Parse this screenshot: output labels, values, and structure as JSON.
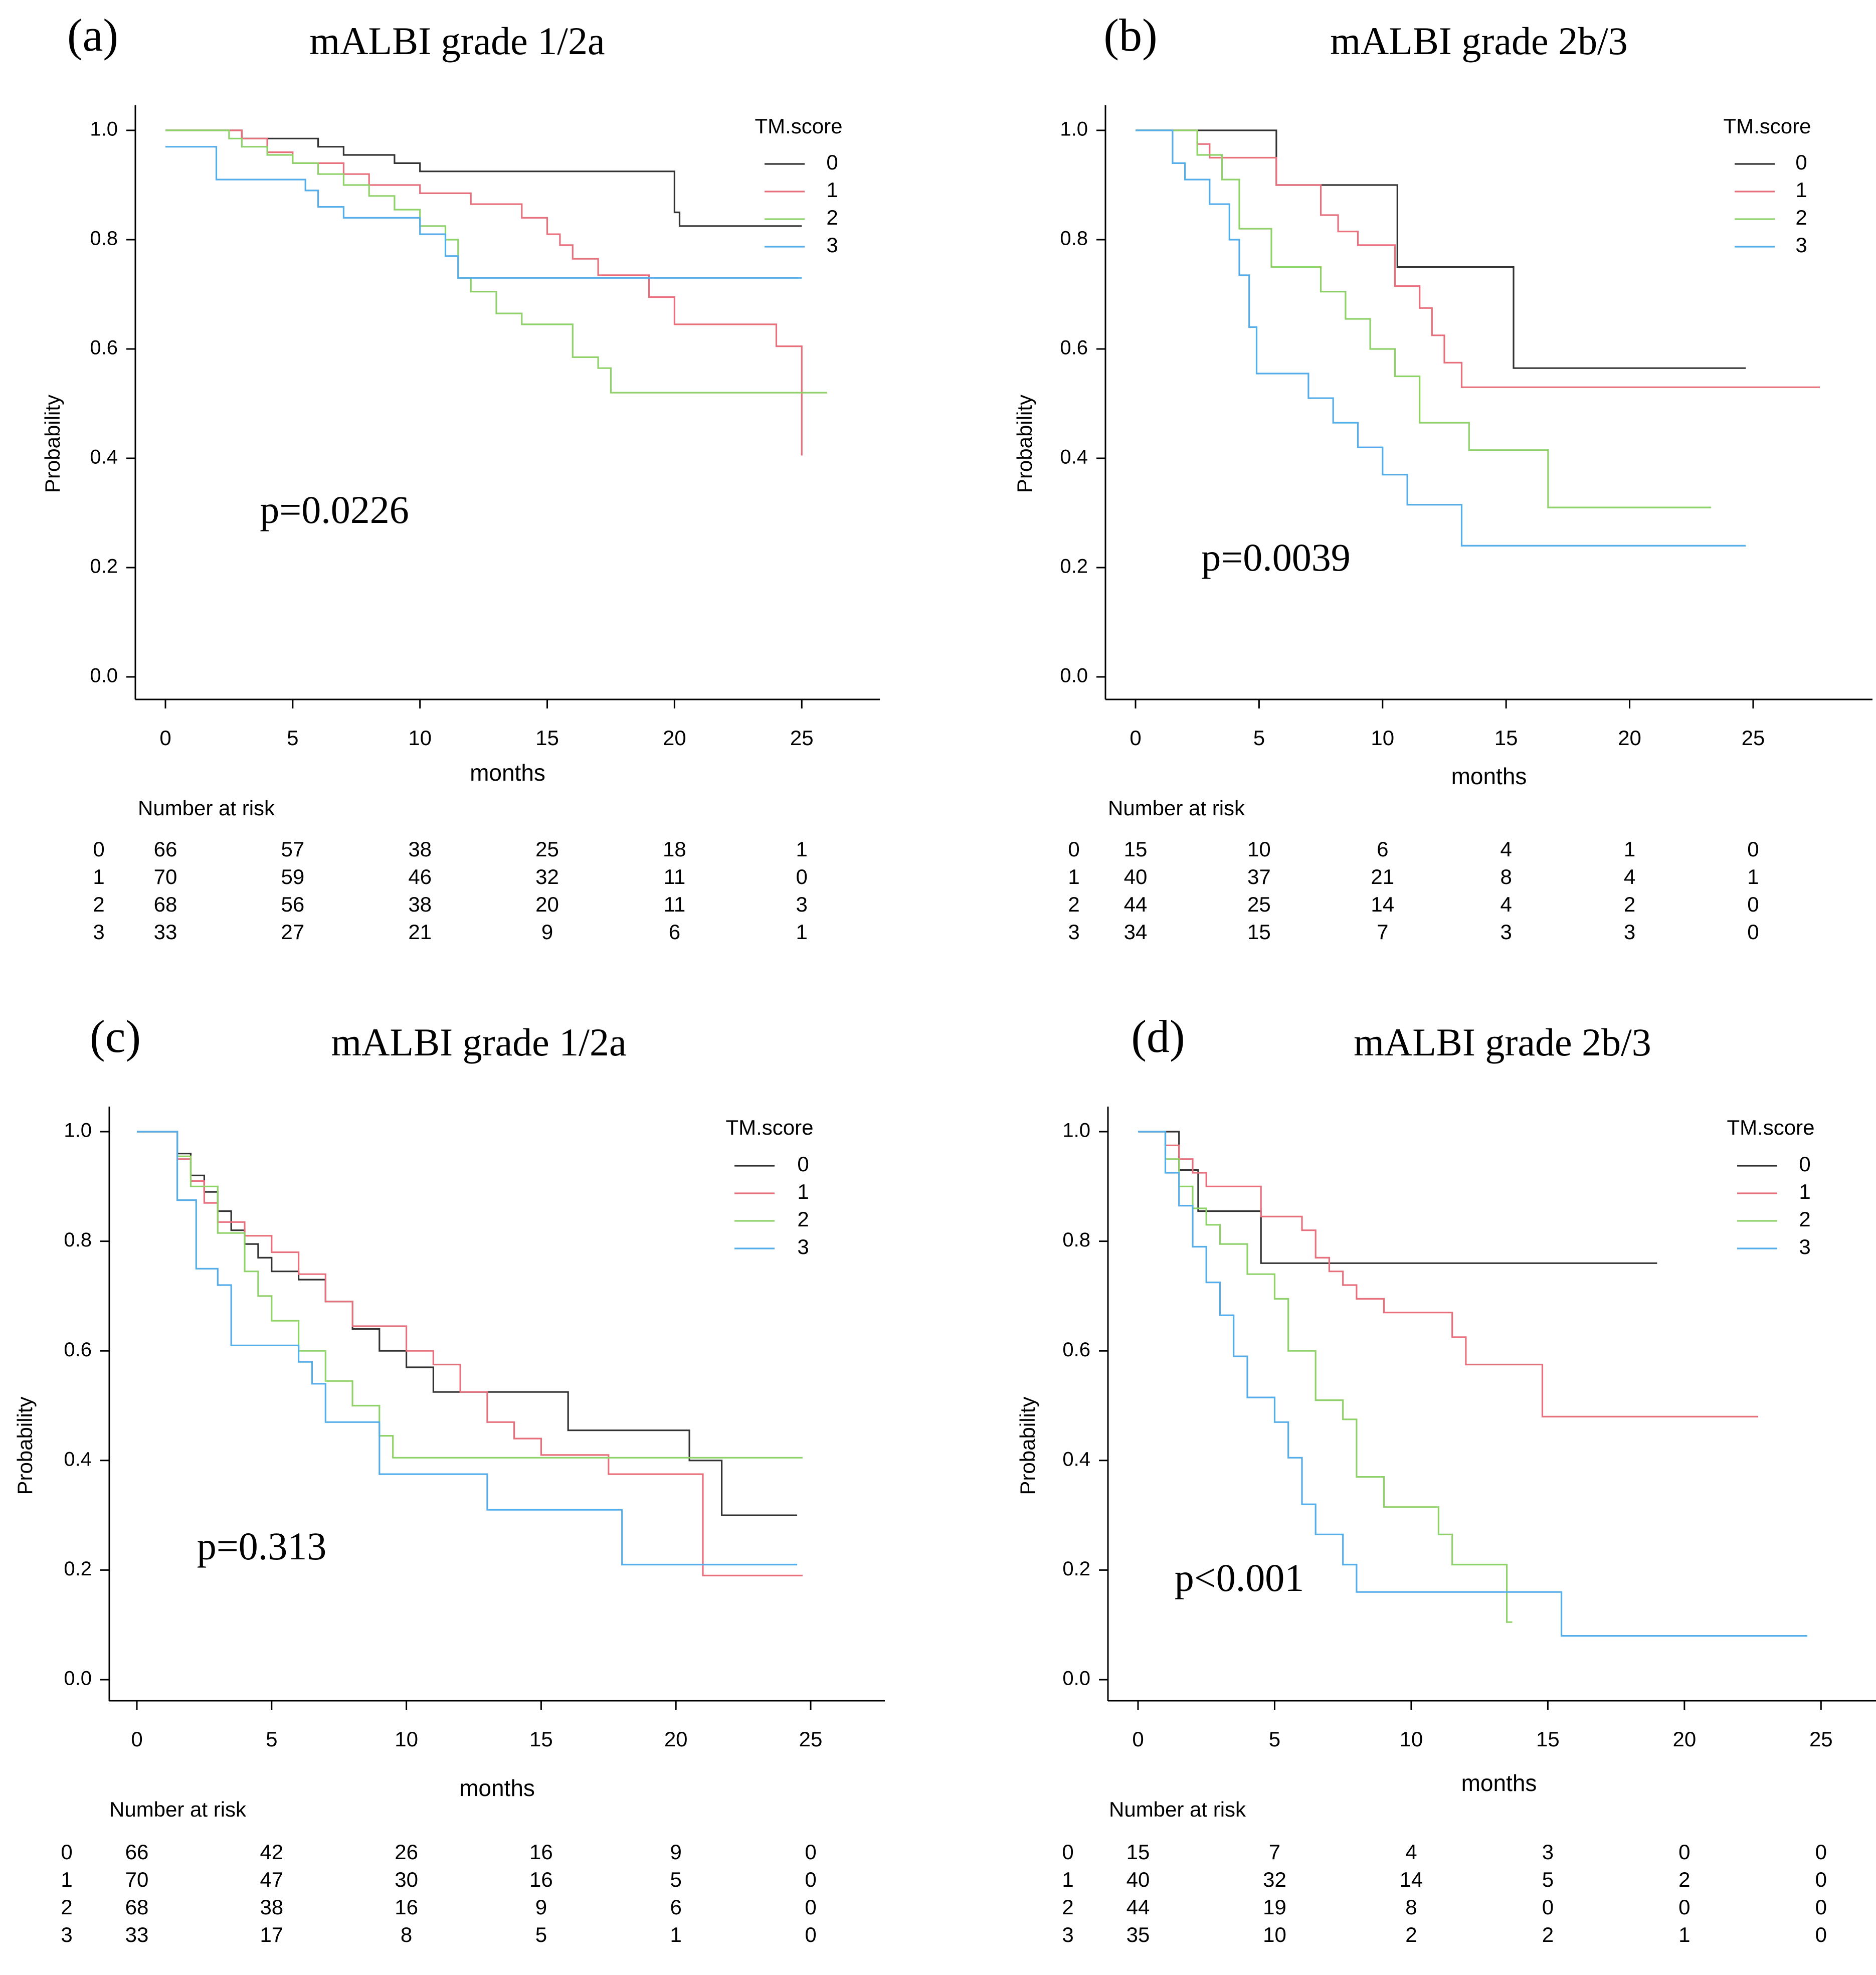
{
  "colors": {
    "0": "#333333",
    "1": "#e8707d",
    "2": "#8fd26a",
    "3": "#55aeea",
    "axis": "#000000"
  },
  "icon": "none",
  "chart_data": [
    {
      "type": "line",
      "panel_label": "(a)",
      "title": "mALBI grade 1/2a",
      "xlabel": "months",
      "ylabel": "Probability",
      "xlim": [
        0,
        26
      ],
      "ylim": [
        0,
        1
      ],
      "x_ticks": [
        "0",
        "5",
        "10",
        "15",
        "20",
        "25"
      ],
      "y_ticks": [
        "0.0",
        "0.2",
        "0.4",
        "0.6",
        "0.8",
        "1.0"
      ],
      "legend_title": "TM.score",
      "legend_position": "top-right",
      "pvalue": "p=0.0226",
      "series": [
        {
          "name": "0",
          "color_key": "0",
          "x": [
            0,
            3,
            6,
            7,
            9,
            10,
            20,
            20.2,
            25
          ],
          "y": [
            1.0,
            0.985,
            0.97,
            0.955,
            0.94,
            0.925,
            0.85,
            0.825,
            0.825
          ]
        },
        {
          "name": "1",
          "color_key": "1",
          "x": [
            0,
            3,
            4,
            5,
            7,
            8,
            10,
            12,
            14,
            15,
            15.5,
            16,
            17,
            18,
            19,
            20,
            24,
            25
          ],
          "y": [
            1.0,
            0.985,
            0.96,
            0.94,
            0.92,
            0.9,
            0.885,
            0.865,
            0.84,
            0.81,
            0.79,
            0.765,
            0.735,
            0.735,
            0.695,
            0.645,
            0.605,
            0.405
          ]
        },
        {
          "name": "2",
          "color_key": "2",
          "x": [
            0,
            2.5,
            3,
            4,
            5,
            6,
            7,
            8,
            9,
            10,
            11,
            11.5,
            12,
            13,
            14,
            16,
            17,
            17.5,
            26
          ],
          "y": [
            1.0,
            0.985,
            0.97,
            0.955,
            0.94,
            0.92,
            0.9,
            0.88,
            0.855,
            0.825,
            0.8,
            0.73,
            0.705,
            0.665,
            0.645,
            0.585,
            0.565,
            0.52,
            0.52
          ]
        },
        {
          "name": "3",
          "color_key": "3",
          "x": [
            0,
            1,
            2,
            5.5,
            6,
            7,
            10,
            11,
            11.5,
            25
          ],
          "y": [
            0.97,
            0.97,
            0.91,
            0.89,
            0.86,
            0.84,
            0.81,
            0.77,
            0.73,
            0.73
          ]
        }
      ],
      "risk_table": {
        "title": "Number at risk",
        "times": [
          "0",
          "5",
          "10",
          "15",
          "20",
          "25"
        ],
        "rows": [
          {
            "group": "0",
            "counts": [
              "66",
              "57",
              "38",
              "25",
              "18",
              "1"
            ]
          },
          {
            "group": "1",
            "counts": [
              "70",
              "59",
              "46",
              "32",
              "11",
              "0"
            ]
          },
          {
            "group": "2",
            "counts": [
              "68",
              "56",
              "38",
              "20",
              "11",
              "3"
            ]
          },
          {
            "group": "3",
            "counts": [
              "33",
              "27",
              "21",
              "9",
              "6",
              "1"
            ]
          }
        ]
      }
    },
    {
      "type": "line",
      "panel_label": "(b)",
      "title": "mALBI grade 2b/3",
      "xlabel": "months",
      "ylabel": "Probability",
      "xlim": [
        0,
        27.7
      ],
      "ylim": [
        0,
        1
      ],
      "x_ticks": [
        "0",
        "5",
        "10",
        "15",
        "20",
        "25"
      ],
      "y_ticks": [
        "0.0",
        "0.2",
        "0.4",
        "0.6",
        "0.8",
        "1.0"
      ],
      "legend_title": "TM.score",
      "legend_position": "top-right",
      "pvalue": "p=0.0039",
      "series": [
        {
          "name": "0",
          "color_key": "0",
          "x": [
            0,
            5.7,
            10.6,
            15.3,
            24.7
          ],
          "y": [
            1.0,
            0.9,
            0.75,
            0.565,
            0.565
          ]
        },
        {
          "name": "1",
          "color_key": "1",
          "x": [
            0,
            2.5,
            3,
            5.7,
            7.5,
            8.2,
            9,
            10.5,
            11.5,
            12,
            12.5,
            13.2,
            27.7
          ],
          "y": [
            1.0,
            0.975,
            0.95,
            0.9,
            0.845,
            0.815,
            0.79,
            0.715,
            0.675,
            0.625,
            0.575,
            0.53,
            0.53
          ]
        },
        {
          "name": "2",
          "color_key": "2",
          "x": [
            0,
            2.5,
            3.5,
            4.2,
            5.5,
            7.5,
            8.5,
            9.5,
            10.5,
            11.5,
            13.5,
            16.7,
            23.3
          ],
          "y": [
            1.0,
            0.955,
            0.91,
            0.82,
            0.75,
            0.705,
            0.655,
            0.6,
            0.55,
            0.465,
            0.415,
            0.31,
            0.31
          ]
        },
        {
          "name": "3",
          "color_key": "3",
          "x": [
            0,
            1.5,
            2,
            3,
            3.8,
            4.2,
            4.6,
            4.9,
            6,
            7,
            8,
            9,
            10,
            11,
            13.2,
            24.7
          ],
          "y": [
            1.0,
            0.94,
            0.91,
            0.865,
            0.8,
            0.735,
            0.64,
            0.555,
            0.555,
            0.51,
            0.465,
            0.42,
            0.37,
            0.315,
            0.24,
            0.24
          ]
        }
      ],
      "risk_table": {
        "title": "Number at risk",
        "times": [
          "0",
          "5",
          "10",
          "15",
          "20",
          "25"
        ],
        "rows": [
          {
            "group": "0",
            "counts": [
              "15",
              "10",
              "6",
              "4",
              "1",
              "0"
            ]
          },
          {
            "group": "1",
            "counts": [
              "40",
              "37",
              "21",
              "8",
              "4",
              "1"
            ]
          },
          {
            "group": "2",
            "counts": [
              "44",
              "25",
              "14",
              "4",
              "2",
              "0"
            ]
          },
          {
            "group": "3",
            "counts": [
              "34",
              "15",
              "7",
              "3",
              "3",
              "0"
            ]
          }
        ]
      }
    },
    {
      "type": "line",
      "panel_label": "(c)",
      "title": "mALBI grade 1/2a",
      "xlabel": "months",
      "ylabel": "Probability",
      "xlim": [
        0,
        25.8
      ],
      "ylim": [
        0,
        1
      ],
      "x_ticks": [
        "0",
        "5",
        "10",
        "15",
        "20",
        "25"
      ],
      "y_ticks": [
        "0.0",
        "0.2",
        "0.4",
        "0.6",
        "0.8",
        "1.0"
      ],
      "legend_title": "TM.score",
      "legend_position": "top-right",
      "pvalue": "p=0.313",
      "series": [
        {
          "name": "0",
          "color_key": "0",
          "x": [
            0,
            1.5,
            2,
            2.5,
            3,
            3.5,
            4,
            4.5,
            5,
            6,
            7,
            8,
            9,
            10,
            11,
            16,
            20.5,
            21.7,
            24.5
          ],
          "y": [
            1.0,
            0.96,
            0.92,
            0.89,
            0.855,
            0.82,
            0.795,
            0.77,
            0.745,
            0.73,
            0.69,
            0.64,
            0.6,
            0.57,
            0.525,
            0.455,
            0.4,
            0.3,
            0.3
          ]
        },
        {
          "name": "1",
          "color_key": "1",
          "x": [
            0,
            1.5,
            2,
            2.5,
            3,
            4,
            5,
            6,
            7,
            8,
            10,
            11,
            12,
            13,
            14,
            15,
            17.5,
            21,
            24.7
          ],
          "y": [
            1.0,
            0.95,
            0.91,
            0.87,
            0.835,
            0.81,
            0.78,
            0.74,
            0.69,
            0.645,
            0.6,
            0.575,
            0.525,
            0.47,
            0.44,
            0.41,
            0.375,
            0.19,
            0.19
          ]
        },
        {
          "name": "2",
          "color_key": "2",
          "x": [
            0,
            1.5,
            2,
            3,
            4,
            4.5,
            5,
            6,
            7,
            8,
            9,
            9.5,
            24.7
          ],
          "y": [
            1.0,
            0.955,
            0.9,
            0.815,
            0.745,
            0.7,
            0.655,
            0.6,
            0.545,
            0.5,
            0.445,
            0.405,
            0.405
          ]
        },
        {
          "name": "3",
          "color_key": "3",
          "x": [
            0,
            1.5,
            2.2,
            3,
            3.5,
            5,
            6,
            6.5,
            7,
            9,
            13,
            18,
            24.5
          ],
          "y": [
            1.0,
            0.875,
            0.75,
            0.72,
            0.61,
            0.61,
            0.58,
            0.54,
            0.47,
            0.375,
            0.31,
            0.21,
            0.21
          ]
        }
      ],
      "risk_table": {
        "title": "Number at risk",
        "times": [
          "0",
          "5",
          "10",
          "15",
          "20",
          "25"
        ],
        "rows": [
          {
            "group": "0",
            "counts": [
              "66",
              "42",
              "26",
              "16",
              "9",
              "0"
            ]
          },
          {
            "group": "1",
            "counts": [
              "70",
              "47",
              "30",
              "16",
              "5",
              "0"
            ]
          },
          {
            "group": "2",
            "counts": [
              "68",
              "38",
              "16",
              "9",
              "6",
              "0"
            ]
          },
          {
            "group": "3",
            "counts": [
              "33",
              "17",
              "8",
              "5",
              "1",
              "0"
            ]
          }
        ]
      }
    },
    {
      "type": "line",
      "panel_label": "(d)",
      "title": "mALBI grade 2b/3",
      "xlabel": "months",
      "ylabel": "Probability",
      "xlim": [
        0,
        25.6
      ],
      "ylim": [
        0,
        1
      ],
      "x_ticks": [
        "0",
        "5",
        "10",
        "15",
        "20",
        "25"
      ],
      "y_ticks": [
        "0.0",
        "0.2",
        "0.4",
        "0.6",
        "0.8",
        "1.0"
      ],
      "legend_title": "TM.score",
      "legend_position": "top-right",
      "pvalue": "p<0.001",
      "series": [
        {
          "name": "0",
          "color_key": "0",
          "x": [
            0,
            1.5,
            2.2,
            4.5,
            19
          ],
          "y": [
            1.0,
            0.93,
            0.855,
            0.76,
            0.76
          ]
        },
        {
          "name": "1",
          "color_key": "1",
          "x": [
            0,
            1,
            1.5,
            2,
            2.5,
            4.5,
            6,
            6.5,
            7,
            7.5,
            8,
            9,
            11.5,
            12,
            14.8,
            22.7
          ],
          "y": [
            1.0,
            0.975,
            0.95,
            0.925,
            0.9,
            0.845,
            0.82,
            0.77,
            0.745,
            0.72,
            0.695,
            0.67,
            0.625,
            0.575,
            0.48,
            0.48
          ]
        },
        {
          "name": "2",
          "color_key": "2",
          "x": [
            0,
            1,
            1.5,
            2,
            2.5,
            3,
            4,
            5,
            5.5,
            6.5,
            7.5,
            8,
            9,
            11,
            11.5,
            13.5,
            13.7
          ],
          "y": [
            1.0,
            0.95,
            0.9,
            0.86,
            0.83,
            0.795,
            0.74,
            0.695,
            0.6,
            0.51,
            0.475,
            0.37,
            0.315,
            0.265,
            0.21,
            0.105,
            0.105
          ]
        },
        {
          "name": "3",
          "color_key": "3",
          "x": [
            0,
            1,
            1.5,
            2,
            2.5,
            3,
            3.5,
            4,
            5,
            5.5,
            6,
            6.5,
            7.5,
            8,
            9,
            15.5,
            24.5
          ],
          "y": [
            1.0,
            0.925,
            0.865,
            0.79,
            0.725,
            0.665,
            0.59,
            0.515,
            0.47,
            0.405,
            0.32,
            0.265,
            0.21,
            0.16,
            0.16,
            0.08,
            0.08
          ]
        }
      ],
      "risk_table": {
        "title": "Number at risk",
        "times": [
          "0",
          "5",
          "10",
          "15",
          "20",
          "25"
        ],
        "rows": [
          {
            "group": "0",
            "counts": [
              "15",
              "7",
              "4",
              "3",
              "0",
              "0"
            ]
          },
          {
            "group": "1",
            "counts": [
              "40",
              "32",
              "14",
              "5",
              "2",
              "0"
            ]
          },
          {
            "group": "2",
            "counts": [
              "44",
              "19",
              "8",
              "0",
              "0",
              "0"
            ]
          },
          {
            "group": "3",
            "counts": [
              "35",
              "10",
              "2",
              "2",
              "1",
              "0"
            ]
          }
        ]
      }
    }
  ]
}
